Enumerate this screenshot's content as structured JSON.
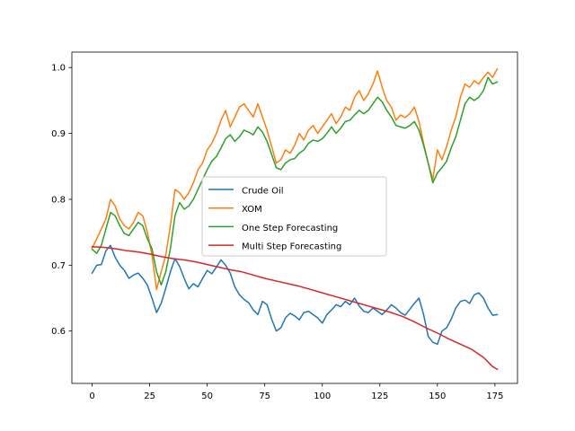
{
  "chart_data": {
    "type": "line",
    "title": "",
    "xlabel": "",
    "ylabel": "",
    "xlim": [
      -8.8,
      184.8
    ],
    "ylim": [
      0.5205,
      1.0235
    ],
    "xticks": [
      0,
      25,
      50,
      75,
      100,
      125,
      150,
      175
    ],
    "yticks": [
      0.6,
      0.7,
      0.8,
      0.9,
      1.0
    ],
    "xtick_labels": [
      "0",
      "25",
      "50",
      "75",
      "100",
      "125",
      "150",
      "175"
    ],
    "ytick_labels": [
      "0.6",
      "0.7",
      "0.8",
      "0.9",
      "1.0"
    ],
    "grid": false,
    "legend_placement": "center",
    "series": [
      {
        "name": "Crude Oil",
        "color": "#1f77b4",
        "points": [
          [
            0,
            0.688
          ],
          [
            2,
            0.7
          ],
          [
            4,
            0.701
          ],
          [
            6,
            0.722
          ],
          [
            8,
            0.73
          ],
          [
            10,
            0.712
          ],
          [
            12,
            0.7
          ],
          [
            14,
            0.692
          ],
          [
            16,
            0.68
          ],
          [
            18,
            0.685
          ],
          [
            20,
            0.688
          ],
          [
            22,
            0.68
          ],
          [
            24,
            0.67
          ],
          [
            26,
            0.65
          ],
          [
            28,
            0.628
          ],
          [
            30,
            0.642
          ],
          [
            32,
            0.665
          ],
          [
            34,
            0.69
          ],
          [
            36,
            0.71
          ],
          [
            38,
            0.698
          ],
          [
            40,
            0.68
          ],
          [
            42,
            0.664
          ],
          [
            44,
            0.672
          ],
          [
            46,
            0.667
          ],
          [
            48,
            0.68
          ],
          [
            50,
            0.692
          ],
          [
            52,
            0.687
          ],
          [
            54,
            0.697
          ],
          [
            56,
            0.708
          ],
          [
            58,
            0.7
          ],
          [
            60,
            0.688
          ],
          [
            62,
            0.667
          ],
          [
            64,
            0.655
          ],
          [
            66,
            0.648
          ],
          [
            68,
            0.643
          ],
          [
            70,
            0.632
          ],
          [
            72,
            0.625
          ],
          [
            74,
            0.645
          ],
          [
            76,
            0.64
          ],
          [
            78,
            0.618
          ],
          [
            80,
            0.6
          ],
          [
            82,
            0.605
          ],
          [
            84,
            0.62
          ],
          [
            86,
            0.627
          ],
          [
            88,
            0.623
          ],
          [
            90,
            0.617
          ],
          [
            92,
            0.628
          ],
          [
            94,
            0.63
          ],
          [
            96,
            0.625
          ],
          [
            98,
            0.62
          ],
          [
            100,
            0.612
          ],
          [
            102,
            0.625
          ],
          [
            104,
            0.632
          ],
          [
            106,
            0.64
          ],
          [
            108,
            0.637
          ],
          [
            110,
            0.645
          ],
          [
            112,
            0.64
          ],
          [
            114,
            0.65
          ],
          [
            116,
            0.638
          ],
          [
            118,
            0.63
          ],
          [
            120,
            0.628
          ],
          [
            122,
            0.635
          ],
          [
            124,
            0.63
          ],
          [
            126,
            0.625
          ],
          [
            128,
            0.632
          ],
          [
            130,
            0.64
          ],
          [
            132,
            0.635
          ],
          [
            134,
            0.628
          ],
          [
            136,
            0.624
          ],
          [
            138,
            0.633
          ],
          [
            140,
            0.642
          ],
          [
            142,
            0.65
          ],
          [
            144,
            0.625
          ],
          [
            146,
            0.592
          ],
          [
            148,
            0.583
          ],
          [
            150,
            0.58
          ],
          [
            152,
            0.6
          ],
          [
            154,
            0.605
          ],
          [
            156,
            0.618
          ],
          [
            158,
            0.635
          ],
          [
            160,
            0.645
          ],
          [
            162,
            0.647
          ],
          [
            164,
            0.642
          ],
          [
            166,
            0.655
          ],
          [
            168,
            0.658
          ],
          [
            170,
            0.65
          ],
          [
            172,
            0.635
          ],
          [
            174,
            0.624
          ],
          [
            176,
            0.625
          ]
        ]
      },
      {
        "name": "XOM",
        "color": "#ff7f0e",
        "points": [
          [
            0,
            0.726
          ],
          [
            2,
            0.74
          ],
          [
            4,
            0.755
          ],
          [
            6,
            0.77
          ],
          [
            8,
            0.8
          ],
          [
            10,
            0.79
          ],
          [
            12,
            0.77
          ],
          [
            14,
            0.76
          ],
          [
            16,
            0.755
          ],
          [
            18,
            0.765
          ],
          [
            20,
            0.78
          ],
          [
            22,
            0.775
          ],
          [
            24,
            0.75
          ],
          [
            26,
            0.715
          ],
          [
            28,
            0.663
          ],
          [
            30,
            0.69
          ],
          [
            32,
            0.715
          ],
          [
            34,
            0.76
          ],
          [
            36,
            0.815
          ],
          [
            38,
            0.81
          ],
          [
            40,
            0.8
          ],
          [
            42,
            0.81
          ],
          [
            44,
            0.825
          ],
          [
            46,
            0.845
          ],
          [
            48,
            0.855
          ],
          [
            50,
            0.875
          ],
          [
            52,
            0.885
          ],
          [
            54,
            0.9
          ],
          [
            56,
            0.92
          ],
          [
            58,
            0.935
          ],
          [
            60,
            0.91
          ],
          [
            62,
            0.925
          ],
          [
            64,
            0.94
          ],
          [
            66,
            0.945
          ],
          [
            68,
            0.935
          ],
          [
            70,
            0.925
          ],
          [
            72,
            0.945
          ],
          [
            74,
            0.925
          ],
          [
            76,
            0.905
          ],
          [
            78,
            0.88
          ],
          [
            80,
            0.855
          ],
          [
            82,
            0.86
          ],
          [
            84,
            0.875
          ],
          [
            86,
            0.87
          ],
          [
            88,
            0.882
          ],
          [
            90,
            0.9
          ],
          [
            92,
            0.89
          ],
          [
            94,
            0.905
          ],
          [
            96,
            0.912
          ],
          [
            98,
            0.9
          ],
          [
            100,
            0.91
          ],
          [
            102,
            0.92
          ],
          [
            104,
            0.93
          ],
          [
            106,
            0.915
          ],
          [
            108,
            0.925
          ],
          [
            110,
            0.94
          ],
          [
            112,
            0.935
          ],
          [
            114,
            0.955
          ],
          [
            116,
            0.965
          ],
          [
            118,
            0.95
          ],
          [
            120,
            0.96
          ],
          [
            122,
            0.975
          ],
          [
            124,
            0.995
          ],
          [
            126,
            0.97
          ],
          [
            128,
            0.95
          ],
          [
            130,
            0.94
          ],
          [
            132,
            0.92
          ],
          [
            134,
            0.928
          ],
          [
            136,
            0.924
          ],
          [
            138,
            0.93
          ],
          [
            140,
            0.94
          ],
          [
            142,
            0.918
          ],
          [
            144,
            0.885
          ],
          [
            146,
            0.855
          ],
          [
            148,
            0.83
          ],
          [
            150,
            0.875
          ],
          [
            152,
            0.86
          ],
          [
            154,
            0.88
          ],
          [
            156,
            0.905
          ],
          [
            158,
            0.925
          ],
          [
            160,
            0.955
          ],
          [
            162,
            0.975
          ],
          [
            164,
            0.97
          ],
          [
            166,
            0.98
          ],
          [
            168,
            0.975
          ],
          [
            170,
            0.985
          ],
          [
            172,
            0.993
          ],
          [
            174,
            0.985
          ],
          [
            176,
            0.998
          ]
        ]
      },
      {
        "name": "One Step Forecasting",
        "color": "#2ca02c",
        "points": [
          [
            0,
            0.724
          ],
          [
            2,
            0.718
          ],
          [
            4,
            0.73
          ],
          [
            6,
            0.755
          ],
          [
            8,
            0.78
          ],
          [
            10,
            0.775
          ],
          [
            12,
            0.76
          ],
          [
            14,
            0.748
          ],
          [
            16,
            0.745
          ],
          [
            18,
            0.755
          ],
          [
            20,
            0.765
          ],
          [
            22,
            0.76
          ],
          [
            24,
            0.74
          ],
          [
            26,
            0.725
          ],
          [
            28,
            0.69
          ],
          [
            30,
            0.67
          ],
          [
            32,
            0.69
          ],
          [
            34,
            0.725
          ],
          [
            36,
            0.775
          ],
          [
            38,
            0.795
          ],
          [
            40,
            0.785
          ],
          [
            42,
            0.79
          ],
          [
            44,
            0.8
          ],
          [
            46,
            0.815
          ],
          [
            48,
            0.83
          ],
          [
            50,
            0.845
          ],
          [
            52,
            0.858
          ],
          [
            54,
            0.865
          ],
          [
            56,
            0.878
          ],
          [
            58,
            0.892
          ],
          [
            60,
            0.898
          ],
          [
            62,
            0.888
          ],
          [
            64,
            0.895
          ],
          [
            66,
            0.905
          ],
          [
            68,
            0.902
          ],
          [
            70,
            0.898
          ],
          [
            72,
            0.91
          ],
          [
            74,
            0.902
          ],
          [
            76,
            0.888
          ],
          [
            78,
            0.868
          ],
          [
            80,
            0.848
          ],
          [
            82,
            0.845
          ],
          [
            84,
            0.855
          ],
          [
            86,
            0.86
          ],
          [
            88,
            0.862
          ],
          [
            90,
            0.87
          ],
          [
            92,
            0.875
          ],
          [
            94,
            0.885
          ],
          [
            96,
            0.89
          ],
          [
            98,
            0.888
          ],
          [
            100,
            0.892
          ],
          [
            102,
            0.9
          ],
          [
            104,
            0.91
          ],
          [
            106,
            0.9
          ],
          [
            108,
            0.908
          ],
          [
            110,
            0.918
          ],
          [
            112,
            0.92
          ],
          [
            114,
            0.928
          ],
          [
            116,
            0.935
          ],
          [
            118,
            0.93
          ],
          [
            120,
            0.935
          ],
          [
            122,
            0.945
          ],
          [
            124,
            0.955
          ],
          [
            126,
            0.948
          ],
          [
            128,
            0.935
          ],
          [
            130,
            0.925
          ],
          [
            132,
            0.912
          ],
          [
            134,
            0.91
          ],
          [
            136,
            0.908
          ],
          [
            138,
            0.912
          ],
          [
            140,
            0.918
          ],
          [
            142,
            0.905
          ],
          [
            144,
            0.882
          ],
          [
            146,
            0.855
          ],
          [
            148,
            0.825
          ],
          [
            150,
            0.84
          ],
          [
            152,
            0.848
          ],
          [
            154,
            0.858
          ],
          [
            156,
            0.878
          ],
          [
            158,
            0.895
          ],
          [
            160,
            0.92
          ],
          [
            162,
            0.945
          ],
          [
            164,
            0.955
          ],
          [
            166,
            0.95
          ],
          [
            168,
            0.955
          ],
          [
            170,
            0.965
          ],
          [
            172,
            0.985
          ],
          [
            174,
            0.975
          ],
          [
            176,
            0.978
          ]
        ]
      },
      {
        "name": "Multi Step Forecasting",
        "color": "#d62728",
        "points": [
          [
            0,
            0.728
          ],
          [
            5,
            0.727
          ],
          [
            10,
            0.725
          ],
          [
            15,
            0.722
          ],
          [
            20,
            0.72
          ],
          [
            25,
            0.717
          ],
          [
            30,
            0.713
          ],
          [
            35,
            0.71
          ],
          [
            40,
            0.708
          ],
          [
            45,
            0.705
          ],
          [
            50,
            0.701
          ],
          [
            55,
            0.697
          ],
          [
            60,
            0.693
          ],
          [
            65,
            0.69
          ],
          [
            70,
            0.685
          ],
          [
            75,
            0.68
          ],
          [
            80,
            0.676
          ],
          [
            85,
            0.672
          ],
          [
            90,
            0.668
          ],
          [
            95,
            0.663
          ],
          [
            100,
            0.658
          ],
          [
            105,
            0.653
          ],
          [
            110,
            0.648
          ],
          [
            115,
            0.643
          ],
          [
            120,
            0.638
          ],
          [
            125,
            0.633
          ],
          [
            130,
            0.628
          ],
          [
            135,
            0.622
          ],
          [
            140,
            0.614
          ],
          [
            145,
            0.605
          ],
          [
            150,
            0.597
          ],
          [
            155,
            0.588
          ],
          [
            160,
            0.58
          ],
          [
            165,
            0.572
          ],
          [
            170,
            0.56
          ],
          [
            174,
            0.546
          ],
          [
            176,
            0.542
          ]
        ]
      }
    ]
  }
}
